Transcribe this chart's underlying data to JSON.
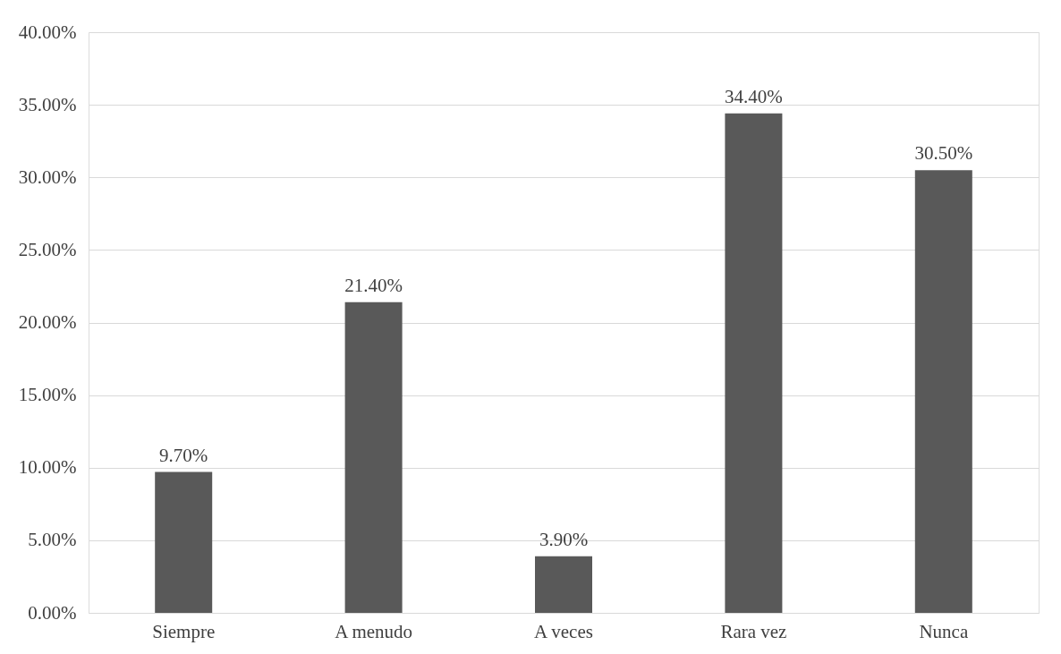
{
  "chart_data": {
    "type": "bar",
    "categories": [
      "Siempre",
      "A menudo",
      "A veces",
      "Rara vez",
      "Nunca"
    ],
    "values": [
      9.7,
      21.4,
      3.9,
      34.4,
      30.5
    ],
    "color": "#595959",
    "value_labels": [
      "9.70%",
      "21.40%",
      "3.90%",
      "34.40%",
      "30.50%"
    ],
    "ylim": [
      0,
      40
    ],
    "yticks": [
      {
        "value": 0,
        "label": "0.00%"
      },
      {
        "value": 5,
        "label": "5.00%"
      },
      {
        "value": 10,
        "label": "10.00%"
      },
      {
        "value": 15,
        "label": "15.00%"
      },
      {
        "value": 20,
        "label": "20.00%"
      },
      {
        "value": 25,
        "label": "25.00%"
      },
      {
        "value": 30,
        "label": "30.00%"
      },
      {
        "value": 35,
        "label": "35.00%"
      },
      {
        "value": 40,
        "label": "40.00%"
      }
    ],
    "grid": "y"
  }
}
